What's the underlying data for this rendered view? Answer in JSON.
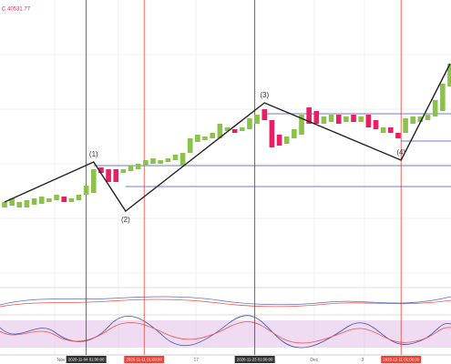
{
  "chart_data": {
    "type": "candlestick",
    "header": "C 40531.77",
    "open": [
      82,
      84,
      82,
      82,
      85,
      86,
      88,
      90,
      94,
      88,
      90,
      96,
      98,
      126,
      124,
      124,
      120,
      122,
      124,
      128,
      130,
      130,
      132,
      134,
      128,
      142,
      154,
      156,
      158,
      158,
      166,
      168,
      166,
      168,
      174,
      190,
      178,
      162,
      152,
      158,
      162,
      192,
      188,
      174,
      176,
      184,
      176,
      184,
      176,
      184,
      178,
      164,
      170,
      164,
      164,
      174,
      176,
      178,
      182,
      188,
      215
    ],
    "close": [
      88,
      92,
      88,
      90,
      92,
      94,
      92,
      96,
      88,
      92,
      96,
      106,
      124,
      120,
      110,
      110,
      124,
      128,
      130,
      134,
      136,
      134,
      136,
      140,
      142,
      158,
      162,
      160,
      164,
      174,
      170,
      164,
      170,
      180,
      184,
      178,
      148,
      150,
      160,
      168,
      184,
      174,
      174,
      182,
      184,
      174,
      182,
      176,
      182,
      170,
      168,
      170,
      164,
      158,
      180,
      182,
      182,
      184,
      200,
      218,
      240
    ],
    "up_color": "#8bc34a",
    "down_color": "#e91e63",
    "ylim": [
      0,
      310
    ],
    "zigzag": {
      "x": [
        0,
        12,
        16.3,
        35,
        53.4,
        60
      ],
      "values": [
        88,
        132,
        78,
        197,
        134,
        240
      ],
      "labels": [
        null,
        "(1)",
        "(2)",
        "(3)",
        "(4)",
        null
      ]
    },
    "levels": {
      "values": [
        185,
        128,
        105,
        155
      ],
      "from": [
        35,
        12,
        16.3,
        53.4
      ]
    },
    "vlines": {
      "x": [
        11,
        18.8,
        33.7,
        53.4
      ],
      "colors": [
        "#444444",
        "#f44336",
        "#444444",
        "#f44336"
      ]
    },
    "x_labels": {
      "x": [
        7.6,
        11,
        18.8,
        25.8,
        33.7,
        41.7,
        48.2,
        53.4
      ],
      "texts": [
        "Nov",
        "2020-11-04 01:00:00",
        "2020-11-11 01:00:00",
        "17",
        "2020-11-23 01:00:00",
        "Dec",
        "3",
        "2020-12-11 01:00:00"
      ],
      "boxes": [
        null,
        "#333333",
        "#f44336",
        null,
        "#333333",
        null,
        null,
        "#f44336"
      ]
    }
  }
}
